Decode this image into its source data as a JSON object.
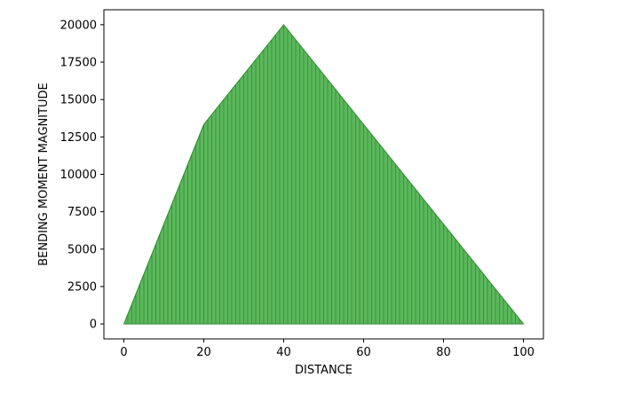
{
  "chart_data": {
    "type": "area",
    "title": "",
    "xlabel": "DISTANCE",
    "ylabel": "BENDING MOMENT MAGNITUDE",
    "x": [
      0,
      20,
      40,
      100
    ],
    "series": [
      {
        "values": [
          0,
          13333,
          20000,
          0
        ],
        "fill_color": "#5cb85c",
        "edge_color": "#2e8b2e"
      }
    ],
    "xlim": [
      -5,
      105
    ],
    "ylim": [
      -1000,
      21000
    ],
    "xticks": [
      0,
      20,
      40,
      60,
      80,
      100
    ],
    "yticks": [
      0,
      2500,
      5000,
      7500,
      10000,
      12500,
      15000,
      17500,
      20000
    ],
    "grid": false,
    "legend": "none"
  }
}
